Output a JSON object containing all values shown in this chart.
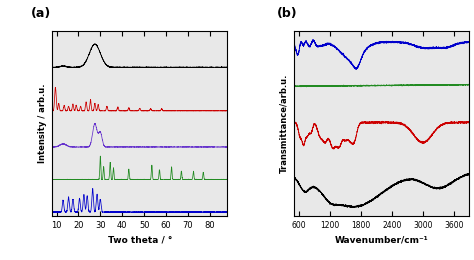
{
  "panel_a_label": "(a)",
  "panel_b_label": "(b)",
  "xrd_xlabel": "Two theta / °",
  "xrd_ylabel": "Intensity / arb.u.",
  "ftir_xlabel": "Wavenumber/cm⁻¹",
  "ftir_ylabel": "Transmittance/arb.u.",
  "xrd_xlim": [
    8,
    88
  ],
  "xrd_xticks": [
    10,
    20,
    30,
    40,
    50,
    60,
    70,
    80
  ],
  "ftir_xlim": [
    500,
    3900
  ],
  "ftir_xticks": [
    600,
    1200,
    1800,
    2400,
    3000,
    3600
  ],
  "colors_xrd": [
    "black",
    "#cc0000",
    "#6633cc",
    "#228B22",
    "#0000cc"
  ],
  "colors_ftir": [
    "#0000cc",
    "#228B22",
    "#cc0000",
    "black"
  ],
  "offsets_xrd": [
    4.0,
    2.8,
    1.8,
    0.9,
    0.0
  ],
  "offsets_ftir": [
    3.0,
    2.0,
    1.0,
    0.0
  ],
  "plot_bg": "#e8e8e8"
}
